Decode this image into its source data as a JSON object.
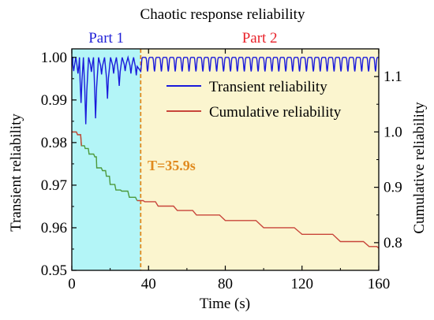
{
  "chart_data": {
    "type": "line",
    "title": "Chaotic response reliability",
    "xlabel": "Time (s)",
    "ylabel_left": "Transient reliability",
    "ylabel_right": "Cumulative reliability",
    "xlim": [
      0,
      160
    ],
    "ylim_left": [
      0.95,
      1.002
    ],
    "ylim_right": [
      0.75,
      1.15
    ],
    "x_ticks": [
      0,
      40,
      80,
      120,
      160
    ],
    "y_ticks_left": [
      0.95,
      0.96,
      0.97,
      0.98,
      0.99,
      1.0
    ],
    "y_ticks_right": [
      0.8,
      0.9,
      1.0,
      1.1
    ],
    "x_tick_labels": [
      "0",
      "40",
      "80",
      "120",
      "160"
    ],
    "y_tick_labels_left": [
      "0.95",
      "0.96",
      "0.97",
      "0.98",
      "0.99",
      "1.00"
    ],
    "y_tick_labels_right": [
      "0.8",
      "0.9",
      "1.0",
      "1.1"
    ],
    "regions": [
      {
        "label": "Part 1",
        "x_start": 0,
        "x_end": 35.9,
        "color": "#b3f5f7",
        "label_color": "#1f1fd6"
      },
      {
        "label": "Part 2",
        "x_start": 35.9,
        "x_end": 160,
        "color": "#fbf5cf",
        "label_color": "#e8222a"
      }
    ],
    "threshold": {
      "label": "T=35.9s",
      "x": 35.9,
      "color": "#e08a1e"
    },
    "legend_position": "upper-right",
    "series": [
      {
        "name": "Transient reliability",
        "axis": "left",
        "color": "#1a1adb",
        "part1_dips": [
          {
            "x": 1.0,
            "y": 0.9968
          },
          {
            "x": 3.2,
            "y": 0.9962
          },
          {
            "x": 4.8,
            "y": 0.9893
          },
          {
            "x": 7.3,
            "y": 0.9843
          },
          {
            "x": 10.2,
            "y": 0.9966
          },
          {
            "x": 12.4,
            "y": 0.9857
          },
          {
            "x": 15.5,
            "y": 0.996
          },
          {
            "x": 18.6,
            "y": 0.9903
          },
          {
            "x": 21.8,
            "y": 0.9962
          },
          {
            "x": 24.7,
            "y": 0.9933
          },
          {
            "x": 27.8,
            "y": 0.9968
          },
          {
            "x": 30.8,
            "y": 0.9962
          },
          {
            "x": 33.6,
            "y": 0.9958
          }
        ],
        "part2_period": 3.6,
        "part2_min": 0.9967,
        "max": 1.0
      },
      {
        "name": "Cumulative reliability",
        "axis": "right",
        "color_part1": "#4c9a3c",
        "color_part2": "#c8453a",
        "points": [
          {
            "x": 0,
            "y": 1.0
          },
          {
            "x": 3,
            "y": 0.995
          },
          {
            "x": 5,
            "y": 0.975
          },
          {
            "x": 7,
            "y": 0.97
          },
          {
            "x": 9,
            "y": 0.96
          },
          {
            "x": 12,
            "y": 0.955
          },
          {
            "x": 13,
            "y": 0.935
          },
          {
            "x": 16,
            "y": 0.93
          },
          {
            "x": 18,
            "y": 0.92
          },
          {
            "x": 20,
            "y": 0.905
          },
          {
            "x": 23,
            "y": 0.895
          },
          {
            "x": 26,
            "y": 0.893
          },
          {
            "x": 30,
            "y": 0.882
          },
          {
            "x": 34,
            "y": 0.876
          },
          {
            "x": 38,
            "y": 0.874
          },
          {
            "x": 45,
            "y": 0.866
          },
          {
            "x": 55,
            "y": 0.858
          },
          {
            "x": 65,
            "y": 0.85
          },
          {
            "x": 80,
            "y": 0.84
          },
          {
            "x": 100,
            "y": 0.827
          },
          {
            "x": 120,
            "y": 0.815
          },
          {
            "x": 140,
            "y": 0.802
          },
          {
            "x": 155,
            "y": 0.793
          },
          {
            "x": 160,
            "y": 0.79
          }
        ]
      }
    ]
  }
}
